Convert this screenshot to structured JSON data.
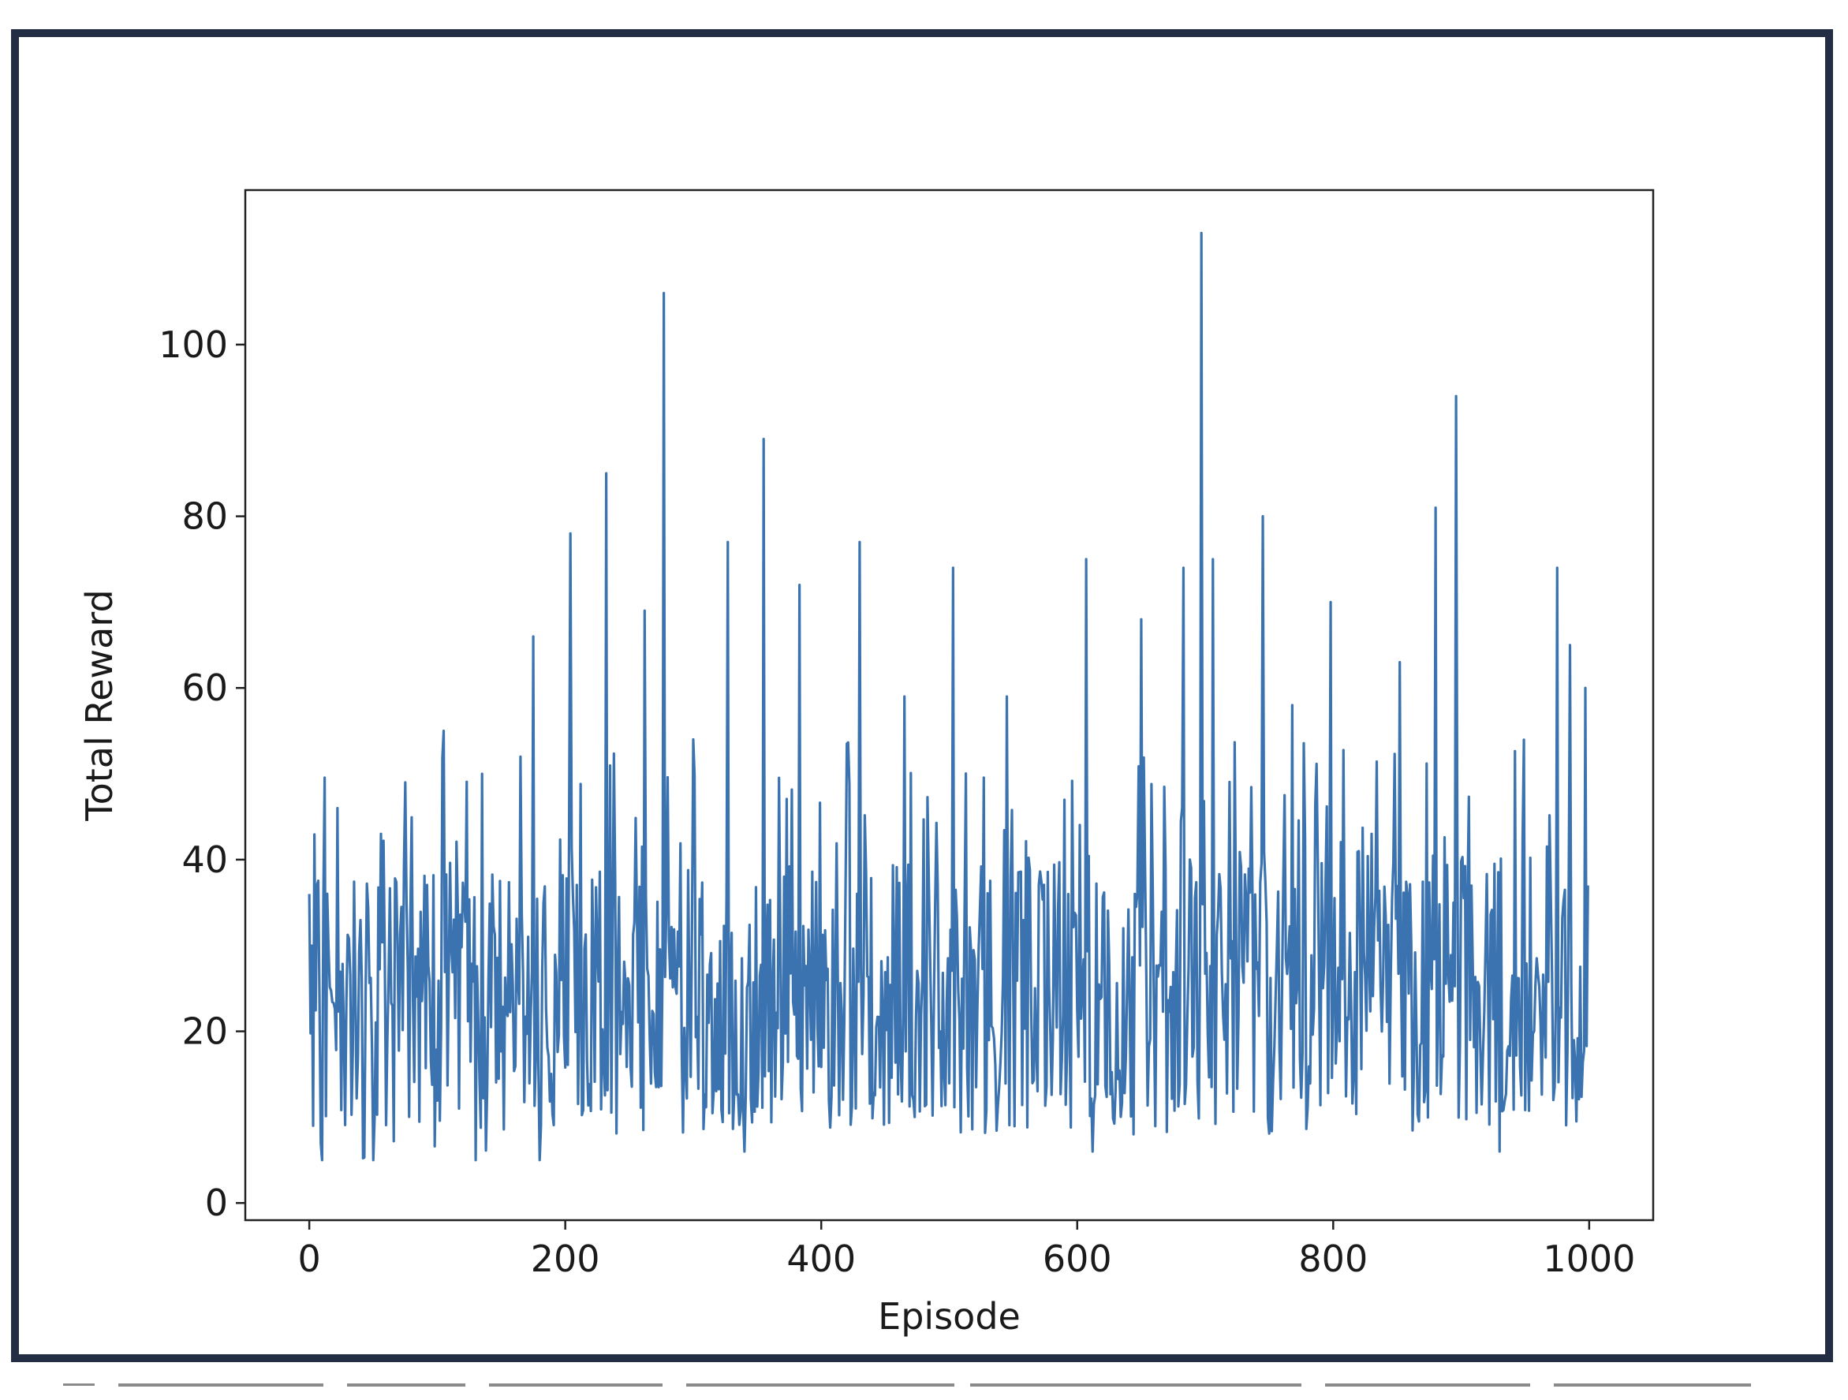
{
  "chart_data": {
    "type": "line",
    "title": "",
    "xlabel": "Episode",
    "ylabel": "Total Reward",
    "xlim": [
      -50,
      1050
    ],
    "ylim": [
      -2,
      118
    ],
    "xticks": [
      0,
      200,
      400,
      600,
      800,
      1000
    ],
    "yticks": [
      0,
      20,
      40,
      60,
      80,
      100
    ],
    "grid": false,
    "legend": "none",
    "series": [
      {
        "color": "#3b73b0",
        "episodes": 1000,
        "description_points": [
          {
            "x": 0,
            "y": 36
          },
          {
            "x": 3,
            "y": 9
          },
          {
            "x": 6,
            "y": 37
          },
          {
            "x": 10,
            "y": 5
          },
          {
            "x": 22,
            "y": 46
          },
          {
            "x": 50,
            "y": 5
          },
          {
            "x": 56,
            "y": 43
          },
          {
            "x": 75,
            "y": 49
          },
          {
            "x": 105,
            "y": 55
          },
          {
            "x": 130,
            "y": 5
          },
          {
            "x": 135,
            "y": 50
          },
          {
            "x": 165,
            "y": 52
          },
          {
            "x": 175,
            "y": 66
          },
          {
            "x": 180,
            "y": 5
          },
          {
            "x": 204,
            "y": 78
          },
          {
            "x": 232,
            "y": 85
          },
          {
            "x": 262,
            "y": 69
          },
          {
            "x": 277,
            "y": 106
          },
          {
            "x": 300,
            "y": 54
          },
          {
            "x": 327,
            "y": 77
          },
          {
            "x": 340,
            "y": 6
          },
          {
            "x": 355,
            "y": 89
          },
          {
            "x": 383,
            "y": 72
          },
          {
            "x": 430,
            "y": 77
          },
          {
            "x": 465,
            "y": 59
          },
          {
            "x": 503,
            "y": 74
          },
          {
            "x": 545,
            "y": 59
          },
          {
            "x": 607,
            "y": 75
          },
          {
            "x": 612,
            "y": 6
          },
          {
            "x": 650,
            "y": 68
          },
          {
            "x": 683,
            "y": 74
          },
          {
            "x": 697,
            "y": 113
          },
          {
            "x": 706,
            "y": 75
          },
          {
            "x": 745,
            "y": 80
          },
          {
            "x": 768,
            "y": 58
          },
          {
            "x": 798,
            "y": 70
          },
          {
            "x": 852,
            "y": 63
          },
          {
            "x": 880,
            "y": 81
          },
          {
            "x": 896,
            "y": 94
          },
          {
            "x": 930,
            "y": 6
          },
          {
            "x": 975,
            "y": 74
          },
          {
            "x": 985,
            "y": 65
          },
          {
            "x": 997,
            "y": 60
          },
          {
            "x": 999,
            "y": 37
          }
        ]
      }
    ]
  },
  "seed": 20240607
}
